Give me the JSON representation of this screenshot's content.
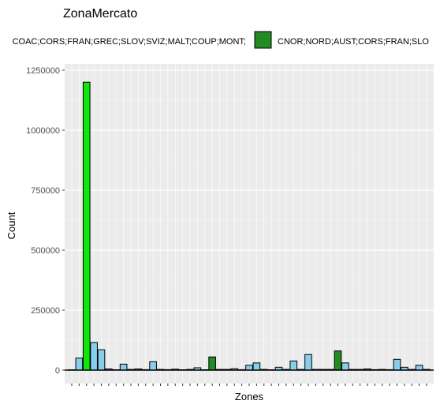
{
  "chart_data": {
    "type": "bar",
    "title": "ZonaMercato",
    "xlabel": "Zones",
    "ylabel": "Count",
    "ylim": [
      0,
      1250000
    ],
    "yticks": [
      0,
      250000,
      500000,
      750000,
      1000000,
      1250000
    ],
    "ytick_labels": [
      "0",
      "250000",
      "500000",
      "750000",
      "1000000",
      "1250000"
    ],
    "grid": true,
    "legend_position": "top",
    "legend": [
      {
        "label": "COAC;CORS;FRAN;GREC;SLOV;SVIZ;MALT;COUP;MONT;",
        "color": "#0ee60e"
      },
      {
        "label": "CNOR;NORD;AUST;CORS;FRAN;SLO",
        "color": "#228b22"
      }
    ],
    "colors": {
      "green": "#0ee60e",
      "darkgreen": "#228b22",
      "blue": "#87ceeb"
    },
    "bars": [
      {
        "v": 0,
        "c": "blue"
      },
      {
        "v": 50000,
        "c": "blue"
      },
      {
        "v": 1200000,
        "c": "green"
      },
      {
        "v": 115000,
        "c": "blue"
      },
      {
        "v": 85000,
        "c": "blue"
      },
      {
        "v": 5000,
        "c": "blue"
      },
      {
        "v": 0,
        "c": "blue"
      },
      {
        "v": 25000,
        "c": "blue"
      },
      {
        "v": 3000,
        "c": "blue"
      },
      {
        "v": 5000,
        "c": "blue"
      },
      {
        "v": 2000,
        "c": "blue"
      },
      {
        "v": 35000,
        "c": "blue"
      },
      {
        "v": 3000,
        "c": "blue"
      },
      {
        "v": 2000,
        "c": "blue"
      },
      {
        "v": 4000,
        "c": "blue"
      },
      {
        "v": 0,
        "c": "blue"
      },
      {
        "v": 3000,
        "c": "blue"
      },
      {
        "v": 10000,
        "c": "blue"
      },
      {
        "v": 0,
        "c": "blue"
      },
      {
        "v": 55000,
        "c": "darkgreen"
      },
      {
        "v": 3000,
        "c": "blue"
      },
      {
        "v": 3000,
        "c": "blue"
      },
      {
        "v": 6000,
        "c": "blue"
      },
      {
        "v": 2000,
        "c": "blue"
      },
      {
        "v": 20000,
        "c": "blue"
      },
      {
        "v": 30000,
        "c": "blue"
      },
      {
        "v": 3000,
        "c": "blue"
      },
      {
        "v": 0,
        "c": "blue"
      },
      {
        "v": 12000,
        "c": "blue"
      },
      {
        "v": 3000,
        "c": "blue"
      },
      {
        "v": 38000,
        "c": "blue"
      },
      {
        "v": 3000,
        "c": "blue"
      },
      {
        "v": 65000,
        "c": "blue"
      },
      {
        "v": 3000,
        "c": "blue"
      },
      {
        "v": 3000,
        "c": "blue"
      },
      {
        "v": 3000,
        "c": "blue"
      },
      {
        "v": 80000,
        "c": "darkgreen"
      },
      {
        "v": 30000,
        "c": "blue"
      },
      {
        "v": 3000,
        "c": "blue"
      },
      {
        "v": 3000,
        "c": "blue"
      },
      {
        "v": 5000,
        "c": "blue"
      },
      {
        "v": 2000,
        "c": "blue"
      },
      {
        "v": 3000,
        "c": "blue"
      },
      {
        "v": 2000,
        "c": "blue"
      },
      {
        "v": 45000,
        "c": "blue"
      },
      {
        "v": 12000,
        "c": "blue"
      },
      {
        "v": 3000,
        "c": "blue"
      },
      {
        "v": 20000,
        "c": "blue"
      },
      {
        "v": 3000,
        "c": "blue"
      }
    ]
  }
}
